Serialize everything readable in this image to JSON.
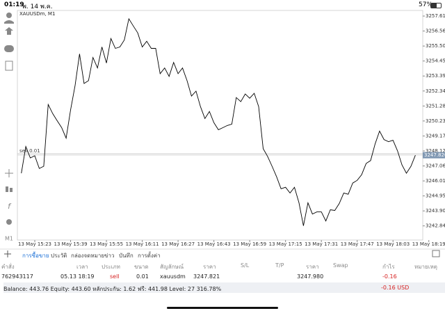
{
  "status_bar": {
    "time": "01:19",
    "date": "พ. 14 พ.ค.",
    "battery": "57%"
  },
  "chart_data": {
    "type": "line",
    "symbol": "XAUUSDm, M1",
    "order_label": "sell 0.01",
    "current_price": {
      "value": 3247.82,
      "label": "3247.820"
    },
    "color": "#000000",
    "categories": [
      null,
      null,
      null,
      "13 May 15:23",
      null,
      null,
      null,
      null,
      null,
      null,
      null,
      "13 May 15:39",
      null,
      null,
      null,
      null,
      null,
      null,
      null,
      "13 May 15:55",
      null,
      null,
      null,
      null,
      null,
      null,
      null,
      "13 May 16:11",
      null,
      null,
      null,
      null,
      null,
      null,
      null,
      "13 May 16:27",
      null,
      null,
      null,
      null,
      null,
      null,
      null,
      "13 May 16:43",
      null,
      null,
      null,
      null,
      null,
      null,
      null,
      "13 May 16:59",
      null,
      null,
      null,
      null,
      null,
      null,
      null,
      "13 May 17:15",
      null,
      null,
      null,
      null,
      null,
      null,
      null,
      "13 May 17:31",
      null,
      null,
      null,
      null,
      null,
      null,
      null,
      "13 May 17:47",
      null,
      null,
      null,
      null,
      null,
      null,
      null,
      "13 May 18:03",
      null,
      null,
      null,
      null,
      null,
      null,
      null,
      "13 May 18:19"
    ],
    "values": [
      3246.55,
      3248.43,
      3247.63,
      3247.78,
      3246.89,
      3247.04,
      3251.39,
      3250.75,
      3250.25,
      3249.76,
      3249.02,
      3251.0,
      3252.73,
      3254.95,
      3252.87,
      3253.07,
      3254.7,
      3253.96,
      3255.44,
      3254.31,
      3256.03,
      3255.34,
      3255.44,
      3255.93,
      3257.42,
      3256.92,
      3256.43,
      3255.44,
      3255.84,
      3255.34,
      3255.34,
      3253.56,
      3253.96,
      3253.37,
      3254.35,
      3253.56,
      3253.96,
      3253.07,
      3251.98,
      3252.33,
      3251.24,
      3250.4,
      3250.9,
      3250.11,
      3249.61,
      3249.76,
      3249.91,
      3250.01,
      3251.88,
      3251.59,
      3252.13,
      3251.83,
      3252.18,
      3251.24,
      3248.28,
      3247.73,
      3247.04,
      3246.3,
      3245.46,
      3245.56,
      3245.16,
      3245.56,
      3244.47,
      3242.85,
      3244.47,
      3243.68,
      3243.83,
      3243.83,
      3243.19,
      3243.98,
      3243.93,
      3244.42,
      3245.16,
      3245.07,
      3245.86,
      3246.05,
      3246.45,
      3247.24,
      3247.44,
      3248.62,
      3249.52,
      3248.92,
      3248.77,
      3248.87,
      3248.13,
      3247.14,
      3246.55,
      3247.04,
      3247.82,
      null,
      null,
      null
    ],
    "ylim": [
      3241.85,
      3258.01
    ],
    "yticks": [
      3257.615,
      {
        "value": 3256.56,
        "label": "3256.560"
      },
      3255.505,
      {
        "value": 3254.45,
        "label": "3254.450"
      },
      3253.395,
      {
        "value": 3252.34,
        "label": "3252.340"
      },
      3251.285,
      {
        "value": 3250.23,
        "label": "3250.230"
      },
      3249.175,
      {
        "value": 3248.12,
        "label": "3248.120"
      },
      3247.065,
      {
        "value": 3246.01,
        "label": "3246.010"
      },
      3244.955,
      {
        "value": 3243.9,
        "label": "3243.900"
      },
      3242.845
    ],
    "grid": false
  },
  "tabs": [
    "การซื้อขาย",
    "ประวัติ",
    "กล่องจดหมาย",
    "ข่าว",
    "บันทึก",
    "การตั้งค่า"
  ],
  "table": {
    "headers": [
      "คำสั่ง",
      "เวลา",
      "ประเภท",
      "ขนาด",
      "สัญลักษณ์",
      "ราคา",
      "S/L",
      "T/P",
      "ราคา",
      "Swap",
      "กำไร",
      "หมายเหตุ"
    ],
    "rows": [
      [
        "762943117",
        "05.13 18:19",
        "sell",
        "0.01",
        "xauusdm",
        "3247.821",
        "",
        "",
        "3247.980",
        "",
        "-0.16",
        ""
      ]
    ]
  },
  "balance": {
    "text": "Balance: 443.76 Equity: 443.60 หลักประกัน: 1.62 ฟรี: 441.98 Level: 27 316.78%",
    "profit": "-0.16 USD"
  }
}
